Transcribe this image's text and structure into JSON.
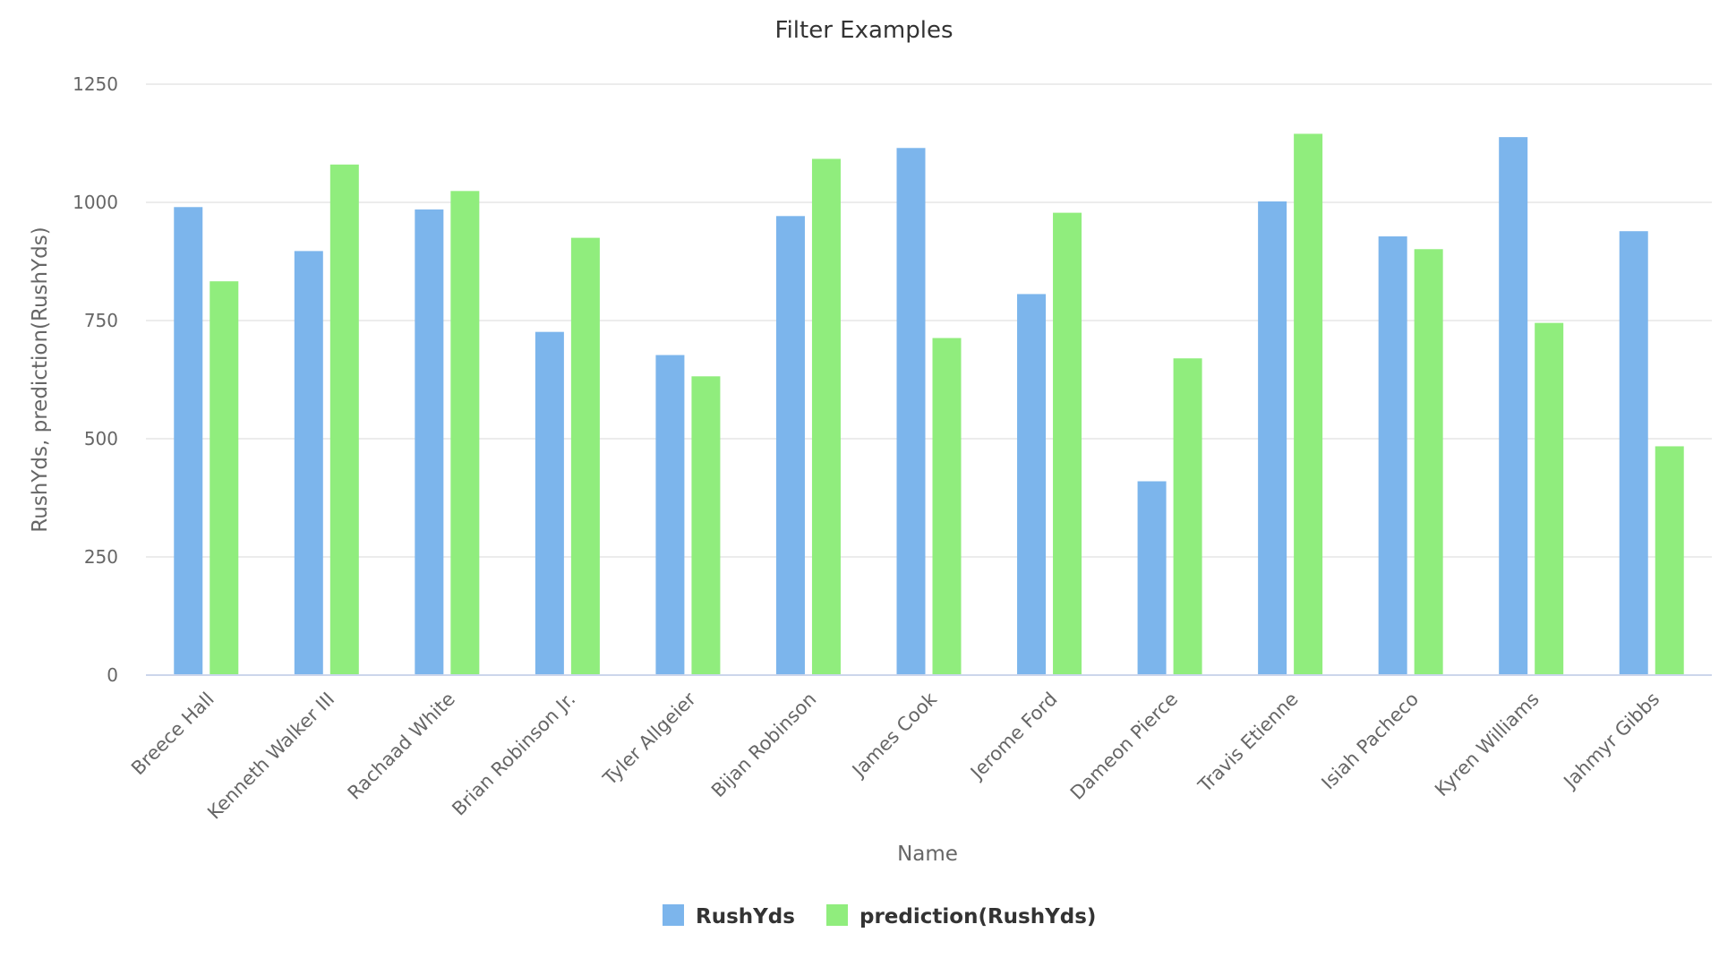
{
  "chart_data": {
    "type": "bar",
    "title": "Filter Examples",
    "xlabel": "Name",
    "ylabel": "RushYds, prediction(RushYds)",
    "ylim": [
      0,
      1250
    ],
    "yticks": [
      "0",
      "250",
      "500",
      "750",
      "1000",
      "1250"
    ],
    "grid": true,
    "legend_position": "bottom-center",
    "categories": [
      "Breece Hall",
      "Kenneth Walker III",
      "Rachaad White",
      "Brian Robinson Jr.",
      "Tyler Allgeier",
      "Bijan Robinson",
      "James Cook",
      "Jerome Ford",
      "Dameon Pierce",
      "Travis Etienne",
      "Isiah Pacheco",
      "Kyren Williams",
      "Jahmyr Gibbs"
    ],
    "series": [
      {
        "name": "RushYds",
        "color": "#7cb5ec",
        "values": [
          990,
          897,
          985,
          726,
          677,
          971,
          1115,
          806,
          410,
          1002,
          928,
          1138,
          939
        ]
      },
      {
        "name": "prediction(RushYds)",
        "color": "#90ed7d",
        "values": [
          833,
          1080,
          1024,
          925,
          632,
          1092,
          713,
          978,
          670,
          1145,
          901,
          745,
          484
        ]
      }
    ]
  }
}
